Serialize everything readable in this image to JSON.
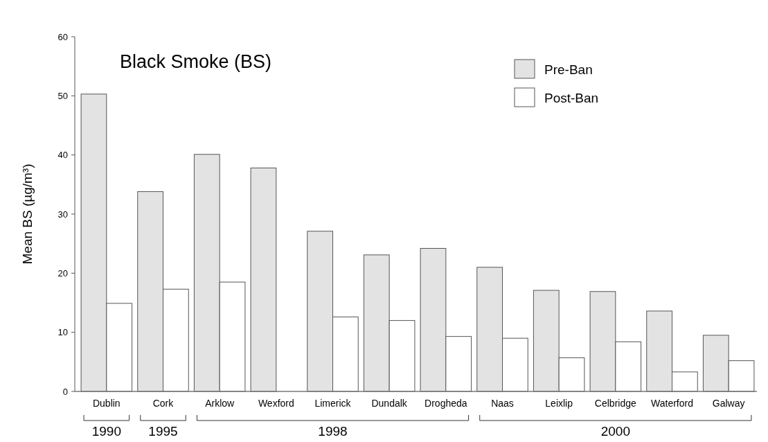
{
  "chart_data": {
    "type": "bar",
    "title": "Black Smoke (BS)",
    "ylabel": "Mean BS (µg/m³)",
    "categories": [
      "Dublin",
      "Cork",
      "Arklow",
      "Wexford",
      "Limerick",
      "Dundalk",
      "Drogheda",
      "Naas",
      "Leixlip",
      "Celbridge",
      "Waterford",
      "Galway"
    ],
    "series": [
      {
        "name": "Pre-Ban",
        "color": "#e3e3e3",
        "values": [
          50.3,
          33.8,
          40.1,
          37.8,
          27.1,
          23.1,
          24.2,
          21.0,
          17.1,
          16.9,
          13.6,
          9.5
        ]
      },
      {
        "name": "Post-Ban",
        "color": "#ffffff",
        "values": [
          14.9,
          17.3,
          18.5,
          null,
          12.6,
          12.0,
          9.3,
          9.0,
          5.7,
          8.4,
          3.3,
          5.2
        ]
      }
    ],
    "ylim": [
      0,
      60
    ],
    "yticks": [
      0,
      10,
      20,
      30,
      40,
      50,
      60
    ],
    "grid": false,
    "legend": "top right",
    "annotations": [
      "1990",
      "1995",
      "1998",
      "2000"
    ]
  }
}
